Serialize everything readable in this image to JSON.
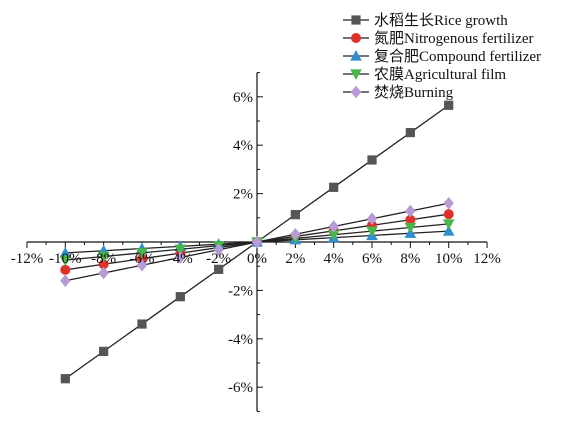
{
  "chart_data": {
    "type": "line",
    "title": "",
    "xlabel": "",
    "ylabel": "",
    "xlim": [
      -12,
      12
    ],
    "ylim": [
      -7,
      7
    ],
    "x_ticks": [
      -12,
      -10,
      -8,
      -6,
      -4,
      -2,
      0,
      2,
      4,
      6,
      8,
      10,
      12
    ],
    "x_tick_labels": [
      "-12%",
      "-10%",
      "-8%",
      "-6%",
      "-4%",
      "-2%",
      "0%",
      "2%",
      "4%",
      "6%",
      "8%",
      "10%",
      "12%"
    ],
    "y_ticks": [
      -6,
      -4,
      -2,
      0,
      2,
      4,
      6
    ],
    "y_tick_labels": [
      "-6%",
      "-4%",
      "-2%",
      "0%",
      "2%",
      "4%",
      "6%"
    ],
    "legend_position": "top-right",
    "grid": false,
    "x": [
      -10,
      -8,
      -6,
      -4,
      -2,
      0,
      2,
      4,
      6,
      8,
      10
    ],
    "series": [
      {
        "name": "水稻生长Rice growth",
        "color": "#555555",
        "marker": "square",
        "values": [
          -5.65,
          -4.52,
          -3.39,
          -2.26,
          -1.13,
          0,
          1.13,
          2.26,
          3.39,
          4.52,
          5.65
        ]
      },
      {
        "name": "氮肥Nitrogenous fertilizer",
        "color": "#e0302b",
        "marker": "circle",
        "values": [
          -1.15,
          -0.92,
          -0.69,
          -0.46,
          -0.23,
          0,
          0.23,
          0.46,
          0.69,
          0.92,
          1.15
        ]
      },
      {
        "name": "复合肥Compound fertilizer",
        "color": "#2f8fd1",
        "marker": "triangle-up",
        "values": [
          -0.45,
          -0.36,
          -0.27,
          -0.18,
          -0.09,
          0,
          0.09,
          0.18,
          0.27,
          0.36,
          0.45
        ]
      },
      {
        "name": "农膜Agricultural film",
        "color": "#49b64a",
        "marker": "triangle-down",
        "values": [
          -0.75,
          -0.6,
          -0.45,
          -0.3,
          -0.15,
          0,
          0.15,
          0.3,
          0.45,
          0.6,
          0.75
        ]
      },
      {
        "name": "焚烧Burning",
        "color": "#b79ad6",
        "marker": "diamond",
        "values": [
          -1.6,
          -1.28,
          -0.96,
          -0.64,
          -0.32,
          0,
          0.32,
          0.64,
          0.96,
          1.28,
          1.6
        ]
      }
    ]
  }
}
